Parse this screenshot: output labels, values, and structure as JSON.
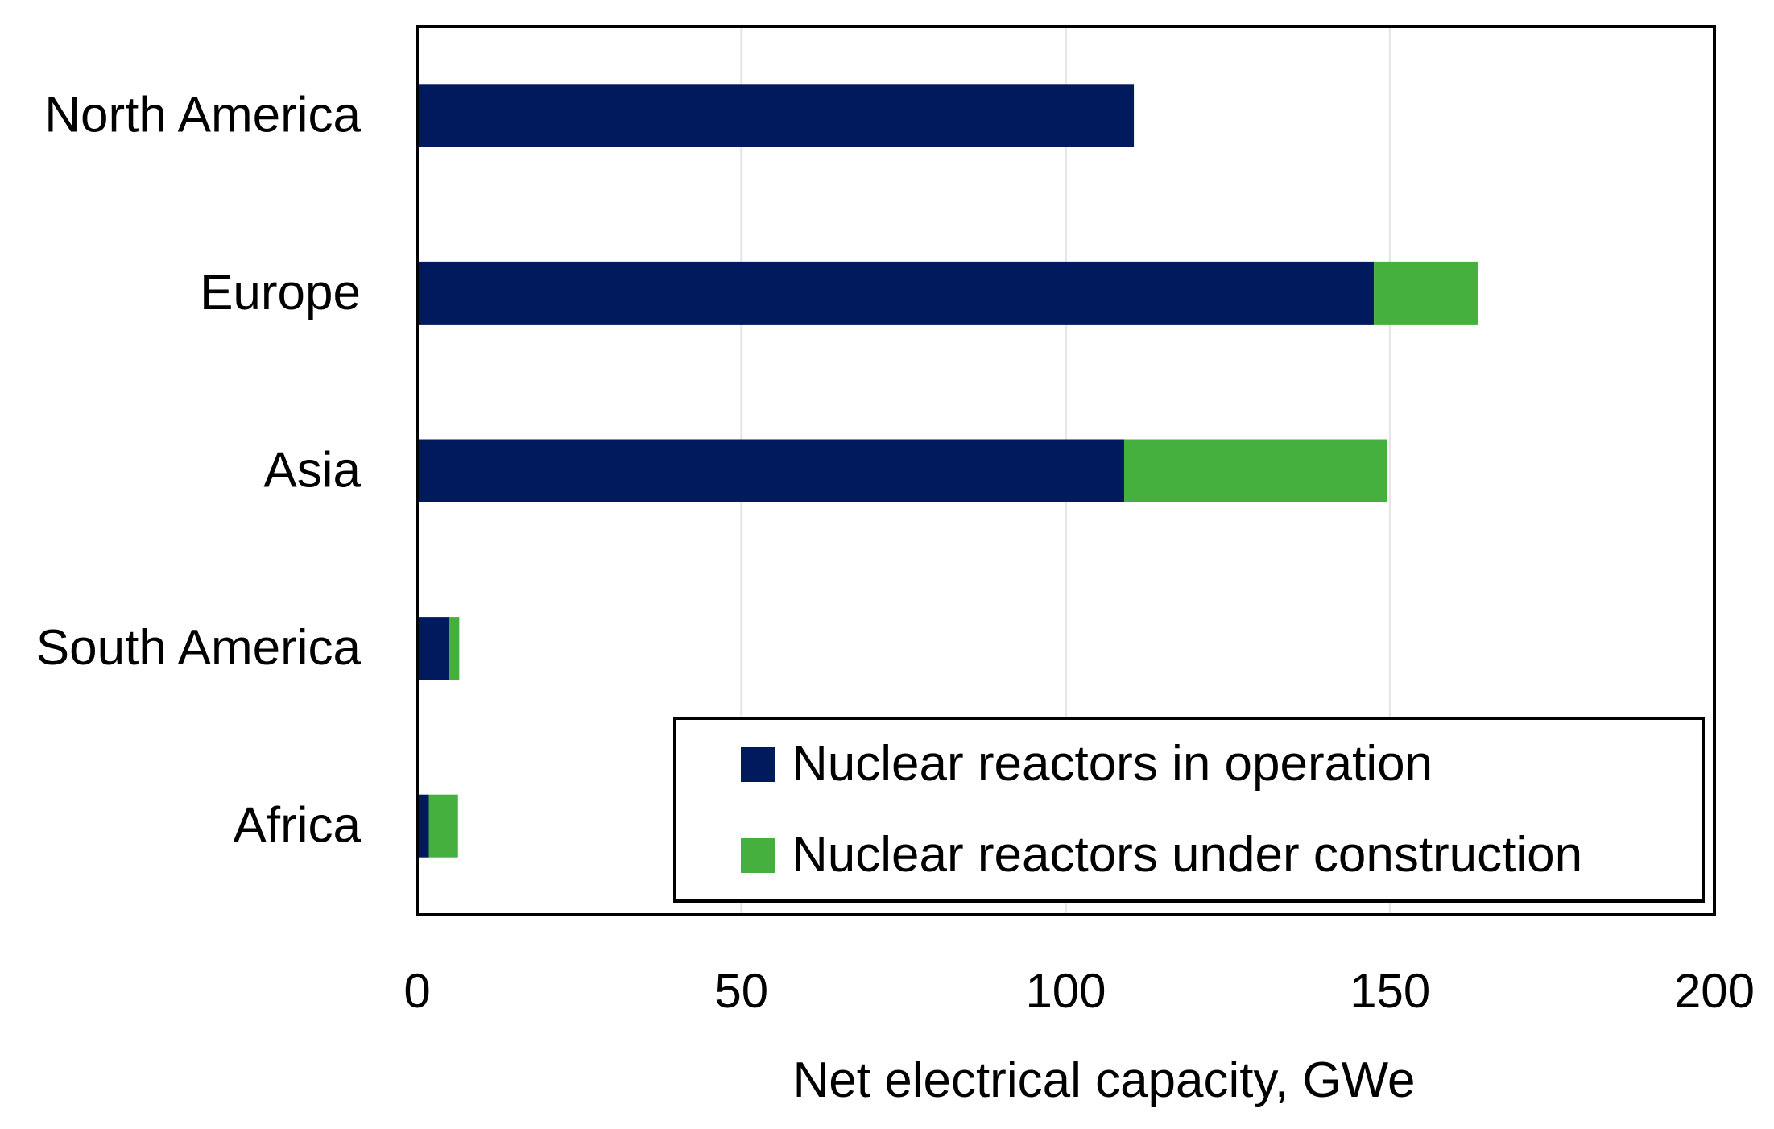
{
  "chart_data": {
    "type": "bar",
    "orientation": "horizontal",
    "stacked": true,
    "categories": [
      "North America",
      "Europe",
      "Asia",
      "South America",
      "Africa"
    ],
    "series": [
      {
        "name": "Nuclear reactors in operation",
        "color": "#001a5e",
        "values": [
          110.5,
          147.5,
          109,
          5,
          1.8
        ]
      },
      {
        "name": "Nuclear reactors under construction",
        "color": "#45b03d",
        "values": [
          0,
          16,
          40.5,
          1.5,
          4.5
        ]
      }
    ],
    "xlabel": "Net electrical capacity, GWe",
    "ylabel": "",
    "xlim": [
      0,
      200
    ],
    "xticks": [
      "0",
      "50",
      "100",
      "150",
      "200"
    ],
    "grid": "vertical",
    "legend_position": "bottom-right"
  }
}
